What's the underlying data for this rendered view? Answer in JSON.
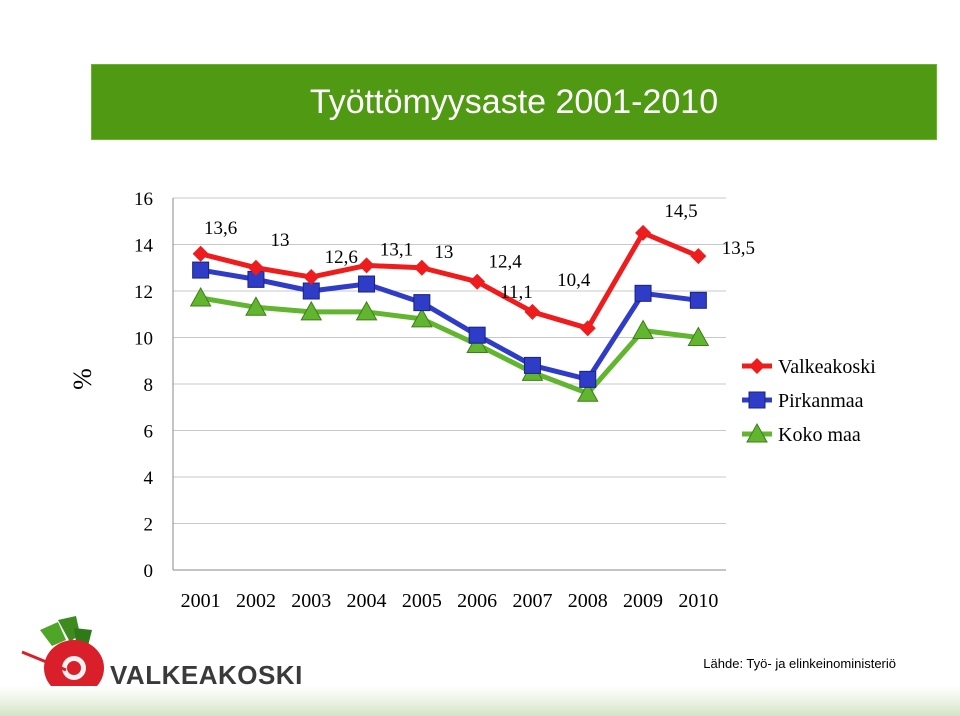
{
  "title": "Työttömyysaste 2001-2010",
  "ylabel": "%",
  "source": "Lähde: Työ- ja elinkeinoministeriö",
  "logo_text": "VALKEAKOSKI",
  "chart_data": {
    "type": "line",
    "title": "Työttömyysaste 2001-2010",
    "ylabel": "%",
    "xlabel": "",
    "ylim": [
      0,
      16
    ],
    "yticks": [
      0,
      2,
      4,
      6,
      8,
      10,
      12,
      14,
      16
    ],
    "x": [
      "2001",
      "2002",
      "2003",
      "2004",
      "2005",
      "2006",
      "2007",
      "2008",
      "2009",
      "2010"
    ],
    "legend_position": "right",
    "series": [
      {
        "name": "Valkeakoski",
        "color": "#ee1c1c",
        "marker": "diamond",
        "values": [
          13.6,
          13.0,
          12.6,
          13.1,
          13.0,
          12.4,
          11.1,
          10.4,
          14.5,
          13.5
        ],
        "labels": [
          "13,6",
          "13",
          "12,6",
          "13,1",
          "13",
          "12,4",
          "11,1",
          "10,4",
          "14,5",
          "13,5"
        ]
      },
      {
        "name": "Pirkanmaa",
        "color": "#2e3cc8",
        "marker": "square",
        "values": [
          12.9,
          12.5,
          12.0,
          12.3,
          11.5,
          10.1,
          8.8,
          8.2,
          11.9,
          11.6
        ]
      },
      {
        "name": "Koko maa",
        "color": "#62b52e",
        "marker": "triangle",
        "values": [
          11.7,
          11.3,
          11.1,
          11.1,
          10.8,
          9.7,
          8.5,
          7.6,
          10.3,
          10.0
        ]
      }
    ]
  }
}
